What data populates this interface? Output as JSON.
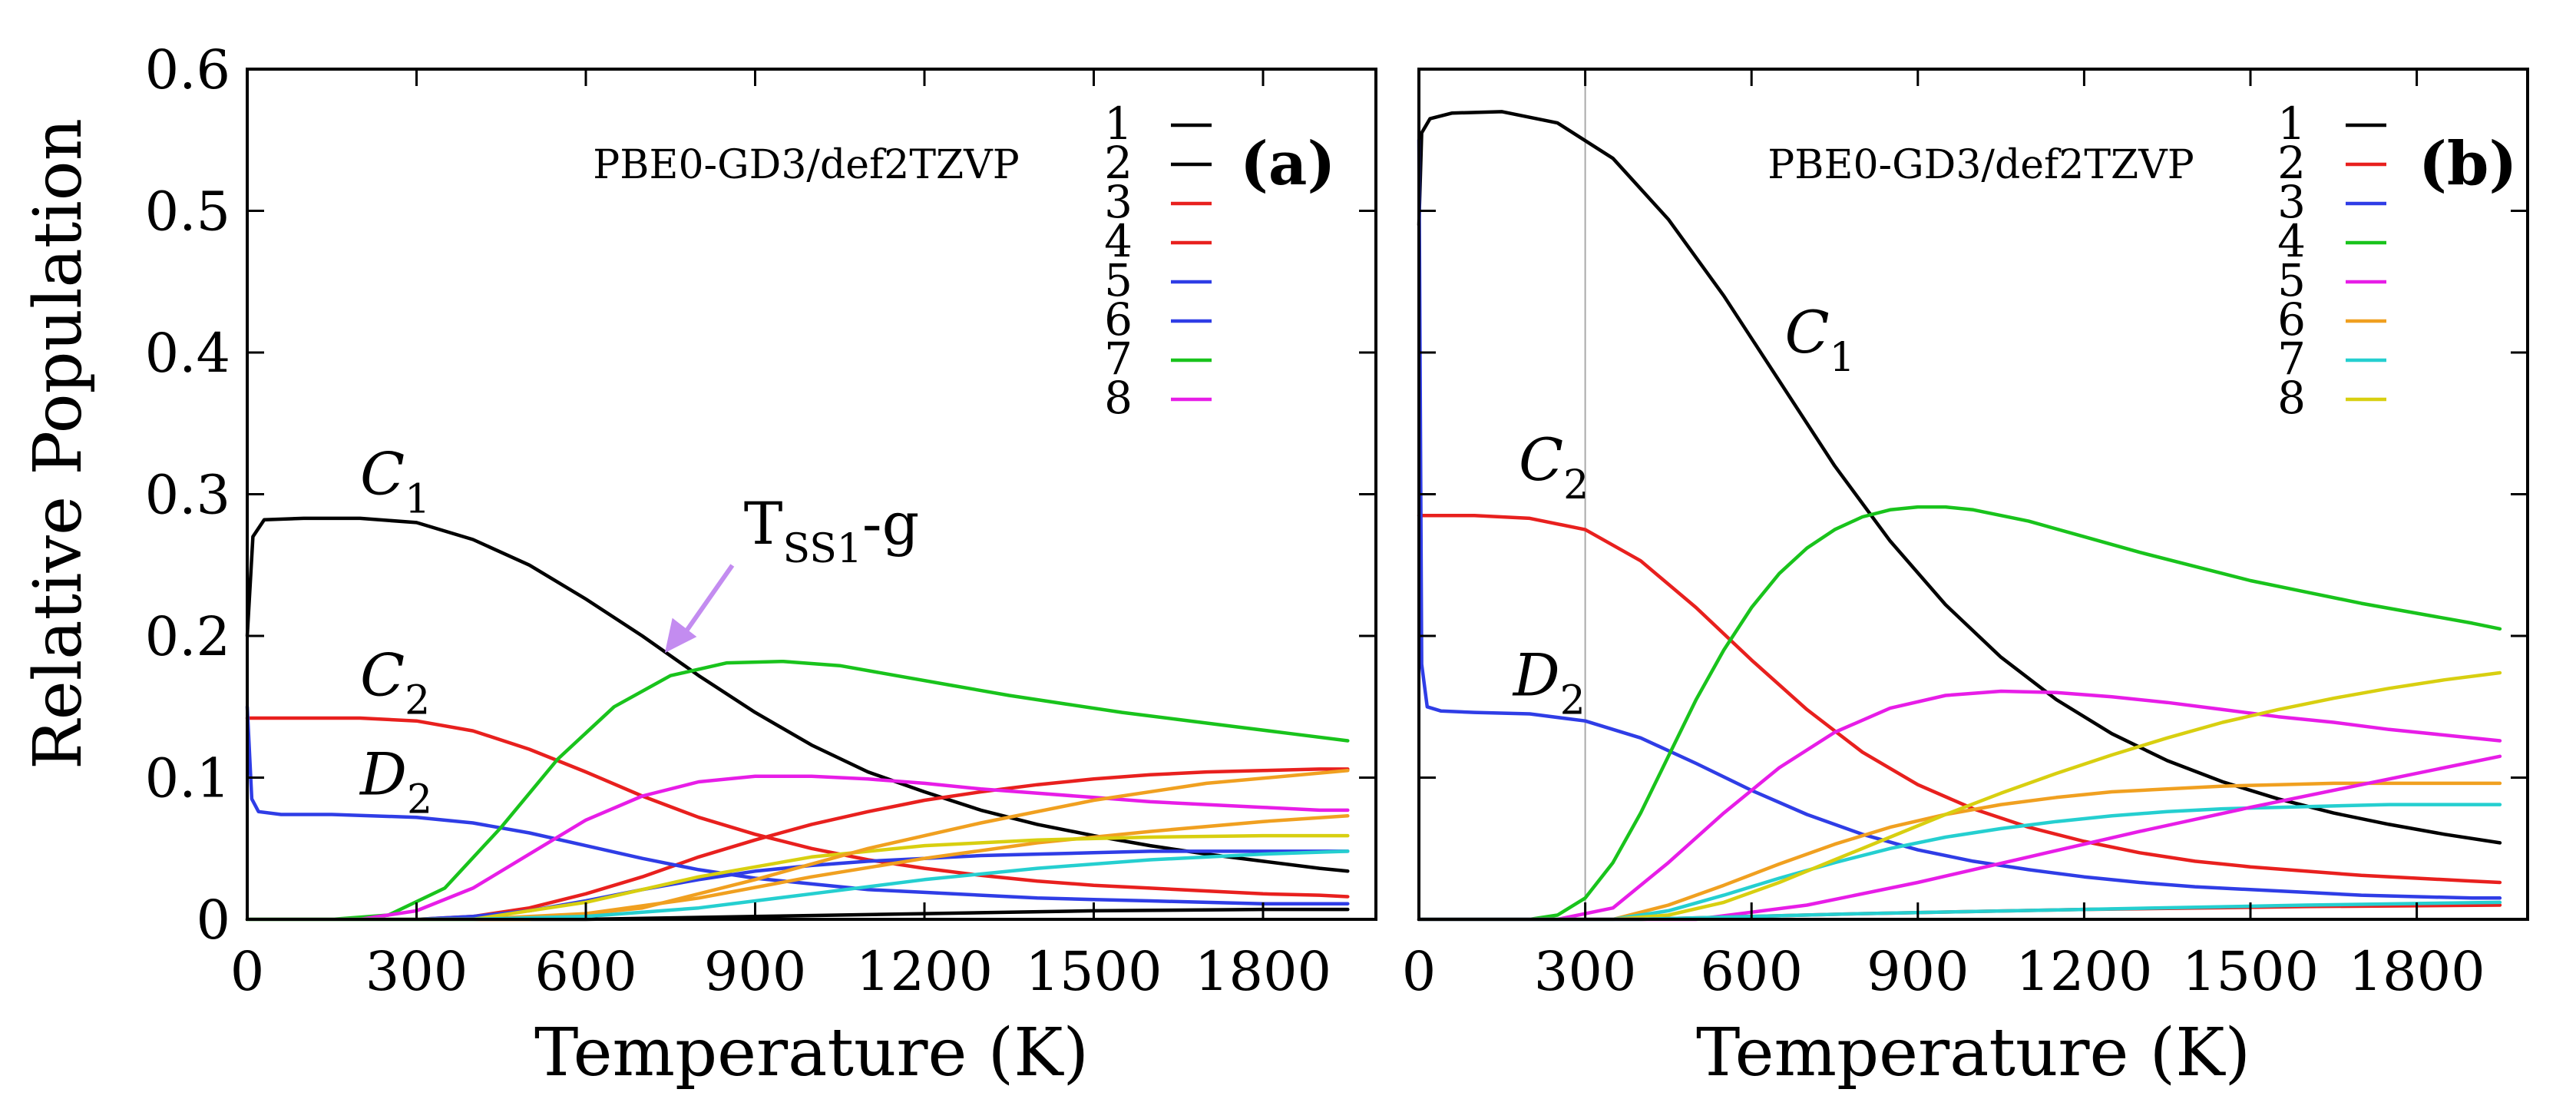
{
  "y_axis_label": "Relative Population",
  "chart_data": [
    {
      "type": "line",
      "panel_label": "(a)",
      "method": "PBE0-GD3/def2TZVP",
      "xlabel": "Temperature (K)",
      "ylabel": "Relative Population",
      "xlim": [
        0,
        2000
      ],
      "ylim": [
        0,
        0.6
      ],
      "xticks": [
        0,
        300,
        600,
        900,
        1200,
        1500,
        1800
      ],
      "yticks": [
        0,
        0.1,
        0.2,
        0.3,
        0.4,
        0.5,
        0.6
      ],
      "ytick_labels": [
        "0",
        "0.1",
        "0.2",
        "0.3",
        "0.4",
        "0.5",
        "0.6"
      ],
      "legend": [
        "1",
        "2",
        "3",
        "4",
        "5",
        "6",
        "7",
        "8"
      ],
      "series": [
        {
          "name": "1",
          "color": "#000000",
          "x": [
            0,
            300,
            600,
            900,
            1200,
            1500,
            1800,
            1950
          ],
          "y": [
            0,
            0,
            0,
            0.002,
            0.004,
            0.006,
            0.007,
            0.007
          ]
        },
        {
          "name": "2",
          "color": "#000000",
          "x": [
            0,
            10,
            30,
            100,
            200,
            300,
            400,
            500,
            600,
            700,
            800,
            900,
            1000,
            1100,
            1200,
            1300,
            1400,
            1500,
            1600,
            1700,
            1800,
            1900,
            1950
          ],
          "y": [
            0.2,
            0.27,
            0.282,
            0.283,
            0.283,
            0.28,
            0.268,
            0.25,
            0.226,
            0.2,
            0.172,
            0.146,
            0.123,
            0.104,
            0.09,
            0.077,
            0.067,
            0.059,
            0.052,
            0.046,
            0.041,
            0.036,
            0.034
          ]
        },
        {
          "name": "3",
          "color": "#e8201e",
          "x": [
            0,
            50,
            100,
            200,
            300,
            400,
            500,
            600,
            700,
            800,
            900,
            1000,
            1100,
            1200,
            1300,
            1400,
            1500,
            1600,
            1700,
            1800,
            1900,
            1950
          ],
          "y": [
            0.142,
            0.142,
            0.142,
            0.142,
            0.14,
            0.133,
            0.12,
            0.104,
            0.087,
            0.072,
            0.06,
            0.05,
            0.042,
            0.036,
            0.031,
            0.027,
            0.024,
            0.022,
            0.02,
            0.018,
            0.017,
            0.016
          ]
        },
        {
          "name": "4",
          "color": "#e8201e",
          "x": [
            0,
            300,
            400,
            500,
            600,
            700,
            800,
            900,
            1000,
            1100,
            1200,
            1300,
            1400,
            1500,
            1600,
            1700,
            1800,
            1900,
            1950
          ],
          "y": [
            0,
            0,
            0.002,
            0.008,
            0.018,
            0.03,
            0.044,
            0.056,
            0.067,
            0.076,
            0.084,
            0.09,
            0.095,
            0.099,
            0.102,
            0.104,
            0.105,
            0.106,
            0.106
          ]
        },
        {
          "name": "5",
          "color": "#2f3de6",
          "x": [
            0,
            8,
            20,
            60,
            150,
            300,
            400,
            500,
            600,
            700,
            800,
            900,
            1000,
            1100,
            1200,
            1300,
            1400,
            1500,
            1600,
            1700,
            1800,
            1900,
            1950
          ],
          "y": [
            0.15,
            0.085,
            0.076,
            0.074,
            0.074,
            0.072,
            0.068,
            0.061,
            0.052,
            0.043,
            0.035,
            0.029,
            0.025,
            0.021,
            0.019,
            0.017,
            0.015,
            0.014,
            0.013,
            0.012,
            0.011,
            0.011,
            0.011
          ]
        },
        {
          "name": "6",
          "color": "#2f3de6",
          "x": [
            0,
            300,
            400,
            500,
            600,
            700,
            800,
            900,
            1000,
            1100,
            1200,
            1300,
            1400,
            1500,
            1600,
            1700,
            1800,
            1900,
            1950
          ],
          "y": [
            0,
            0,
            0.002,
            0.006,
            0.013,
            0.021,
            0.028,
            0.034,
            0.038,
            0.041,
            0.043,
            0.045,
            0.046,
            0.047,
            0.048,
            0.048,
            0.048,
            0.048,
            0.048
          ]
        },
        {
          "name": "7",
          "color": "#19c31c",
          "x": [
            0,
            150,
            250,
            350,
            450,
            550,
            650,
            750,
            850,
            950,
            1050,
            1150,
            1250,
            1350,
            1450,
            1550,
            1650,
            1750,
            1850,
            1950
          ],
          "y": [
            0,
            0,
            0.003,
            0.022,
            0.065,
            0.113,
            0.15,
            0.172,
            0.181,
            0.182,
            0.179,
            0.172,
            0.165,
            0.158,
            0.152,
            0.146,
            0.141,
            0.136,
            0.131,
            0.126
          ]
        },
        {
          "name": "8",
          "color": "#e71de7",
          "x": [
            0,
            200,
            300,
            400,
            500,
            600,
            700,
            800,
            900,
            1000,
            1100,
            1200,
            1300,
            1400,
            1500,
            1600,
            1700,
            1800,
            1900,
            1950
          ],
          "y": [
            0,
            0,
            0.006,
            0.022,
            0.046,
            0.07,
            0.087,
            0.097,
            0.101,
            0.101,
            0.099,
            0.096,
            0.092,
            0.089,
            0.086,
            0.083,
            0.081,
            0.079,
            0.077,
            0.077
          ]
        },
        {
          "name": "",
          "color": "#f0a020",
          "x": [
            0,
            400,
            600,
            800,
            1000,
            1200,
            1400,
            1600,
            1800,
            1950
          ],
          "y": [
            0,
            0,
            0.004,
            0.015,
            0.03,
            0.043,
            0.054,
            0.062,
            0.069,
            0.073
          ]
        },
        {
          "name": "",
          "color": "#d8cf10",
          "x": [
            0,
            400,
            600,
            800,
            1000,
            1200,
            1400,
            1600,
            1800,
            1950
          ],
          "y": [
            0,
            0,
            0.012,
            0.03,
            0.044,
            0.052,
            0.056,
            0.058,
            0.059,
            0.059
          ]
        },
        {
          "name": "",
          "color": "#f0a020",
          "x": [
            0,
            500,
            700,
            900,
            1100,
            1300,
            1500,
            1700,
            1950
          ],
          "y": [
            0,
            0,
            0.008,
            0.028,
            0.05,
            0.068,
            0.084,
            0.096,
            0.105
          ]
        },
        {
          "name": "",
          "color": "#25cfd0",
          "x": [
            0,
            400,
            600,
            800,
            1000,
            1200,
            1400,
            1600,
            1800,
            1950
          ],
          "y": [
            0,
            0,
            0.002,
            0.008,
            0.018,
            0.028,
            0.036,
            0.042,
            0.046,
            0.048
          ]
        }
      ],
      "annotations": [
        {
          "text": "C",
          "sub": "1",
          "x": 200,
          "y": 0.3
        },
        {
          "text": "C",
          "sub": "2",
          "x": 200,
          "y": 0.158
        },
        {
          "text": "D",
          "sub": "2",
          "x": 200,
          "y": 0.088
        },
        {
          "text": "T",
          "sub": "SS1",
          "suffix": "-g",
          "x": 880,
          "y": 0.265,
          "arrow_to_x": 740,
          "arrow_to_y": 0.188
        }
      ]
    },
    {
      "type": "line",
      "panel_label": "(b)",
      "method": "PBE0-GD3/def2TZVP",
      "xlabel": "Temperature (K)",
      "ylabel": "Relative Population",
      "xlim": [
        0,
        2000
      ],
      "ylim": [
        0,
        0.6
      ],
      "xticks": [
        0,
        300,
        600,
        900,
        1200,
        1500,
        1800
      ],
      "yticks": [
        0,
        0.1,
        0.2,
        0.3,
        0.4,
        0.5,
        0.6
      ],
      "legend": [
        "1",
        "2",
        "3",
        "4",
        "5",
        "6",
        "7",
        "8"
      ],
      "vline_x": 300,
      "series": [
        {
          "name": "1",
          "color": "#000000",
          "x": [
            0,
            5,
            20,
            60,
            150,
            250,
            350,
            450,
            550,
            650,
            750,
            850,
            950,
            1050,
            1150,
            1250,
            1350,
            1450,
            1550,
            1650,
            1750,
            1850,
            1950
          ],
          "y": [
            0.49,
            0.555,
            0.565,
            0.569,
            0.57,
            0.562,
            0.537,
            0.494,
            0.44,
            0.38,
            0.32,
            0.267,
            0.222,
            0.185,
            0.155,
            0.131,
            0.112,
            0.097,
            0.085,
            0.075,
            0.067,
            0.06,
            0.054
          ]
        },
        {
          "name": "2",
          "color": "#e8201e",
          "x": [
            0,
            50,
            100,
            200,
            300,
            400,
            500,
            600,
            700,
            800,
            900,
            1000,
            1100,
            1200,
            1300,
            1400,
            1500,
            1600,
            1700,
            1800,
            1900,
            1950
          ],
          "y": [
            0.285,
            0.285,
            0.285,
            0.283,
            0.275,
            0.253,
            0.22,
            0.183,
            0.148,
            0.118,
            0.095,
            0.078,
            0.065,
            0.055,
            0.047,
            0.041,
            0.037,
            0.034,
            0.031,
            0.029,
            0.027,
            0.026
          ]
        },
        {
          "name": "3",
          "color": "#2f3de6",
          "x": [
            0,
            5,
            15,
            40,
            100,
            200,
            300,
            400,
            500,
            600,
            700,
            800,
            900,
            1000,
            1100,
            1200,
            1300,
            1400,
            1500,
            1600,
            1700,
            1800,
            1900,
            1950
          ],
          "y": [
            0.55,
            0.18,
            0.15,
            0.147,
            0.146,
            0.145,
            0.14,
            0.128,
            0.11,
            0.091,
            0.074,
            0.06,
            0.049,
            0.041,
            0.035,
            0.03,
            0.026,
            0.023,
            0.021,
            0.019,
            0.017,
            0.016,
            0.015,
            0.015
          ]
        },
        {
          "name": "4",
          "color": "#19c31c",
          "x": [
            0,
            200,
            250,
            300,
            350,
            400,
            450,
            500,
            550,
            600,
            650,
            700,
            750,
            800,
            850,
            900,
            950,
            1000,
            1100,
            1200,
            1300,
            1400,
            1500,
            1600,
            1700,
            1800,
            1900,
            1950
          ],
          "y": [
            0,
            0,
            0.003,
            0.015,
            0.04,
            0.075,
            0.115,
            0.155,
            0.19,
            0.22,
            0.244,
            0.262,
            0.275,
            0.284,
            0.289,
            0.291,
            0.291,
            0.289,
            0.281,
            0.27,
            0.259,
            0.249,
            0.239,
            0.231,
            0.223,
            0.216,
            0.209,
            0.205
          ]
        },
        {
          "name": "5",
          "color": "#e71de7",
          "x": [
            0,
            250,
            350,
            450,
            550,
            650,
            750,
            850,
            950,
            1050,
            1150,
            1250,
            1350,
            1450,
            1550,
            1650,
            1750,
            1850,
            1950
          ],
          "y": [
            0,
            0,
            0.008,
            0.04,
            0.075,
            0.107,
            0.132,
            0.149,
            0.158,
            0.161,
            0.16,
            0.157,
            0.153,
            0.148,
            0.143,
            0.139,
            0.134,
            0.13,
            0.126
          ]
        },
        {
          "name": "6",
          "color": "#f0a020",
          "x": [
            0,
            350,
            450,
            550,
            650,
            750,
            850,
            950,
            1050,
            1150,
            1250,
            1350,
            1450,
            1550,
            1650,
            1750,
            1850,
            1950
          ],
          "y": [
            0,
            0,
            0.01,
            0.024,
            0.039,
            0.053,
            0.065,
            0.074,
            0.081,
            0.086,
            0.09,
            0.092,
            0.094,
            0.095,
            0.096,
            0.096,
            0.096,
            0.096
          ]
        },
        {
          "name": "7",
          "color": "#25cfd0",
          "x": [
            0,
            350,
            450,
            550,
            650,
            750,
            850,
            950,
            1050,
            1150,
            1250,
            1350,
            1450,
            1550,
            1650,
            1750,
            1850,
            1950
          ],
          "y": [
            0,
            0,
            0.006,
            0.017,
            0.029,
            0.04,
            0.05,
            0.058,
            0.064,
            0.069,
            0.073,
            0.076,
            0.078,
            0.079,
            0.08,
            0.081,
            0.081,
            0.081
          ]
        },
        {
          "name": "8",
          "color": "#d8cf10",
          "x": [
            0,
            350,
            450,
            550,
            650,
            750,
            850,
            950,
            1050,
            1150,
            1250,
            1350,
            1450,
            1550,
            1650,
            1750,
            1850,
            1950
          ],
          "y": [
            0,
            0,
            0.003,
            0.012,
            0.026,
            0.042,
            0.058,
            0.074,
            0.089,
            0.103,
            0.116,
            0.128,
            0.139,
            0.148,
            0.156,
            0.163,
            0.169,
            0.174
          ]
        },
        {
          "name": "",
          "color": "#e71de7",
          "x": [
            0,
            500,
            700,
            900,
            1100,
            1300,
            1500,
            1700,
            1950
          ],
          "y": [
            0,
            0,
            0.01,
            0.026,
            0.044,
            0.062,
            0.079,
            0.095,
            0.115
          ]
        },
        {
          "name": "",
          "color": "#e8201e",
          "x": [
            0,
            400,
            800,
            1200,
            1600,
            1950
          ],
          "y": [
            0,
            0,
            0.004,
            0.007,
            0.009,
            0.01
          ]
        },
        {
          "name": "",
          "color": "#25cfd0",
          "x": [
            0,
            400,
            800,
            1200,
            1600,
            1950
          ],
          "y": [
            0,
            0,
            0.004,
            0.007,
            0.01,
            0.012
          ]
        }
      ],
      "annotations": [
        {
          "text": "C",
          "sub": "1",
          "x": 660,
          "y": 0.4
        },
        {
          "text": "C",
          "sub": "2",
          "x": 180,
          "y": 0.31
        },
        {
          "text": "D",
          "sub": "2",
          "x": 170,
          "y": 0.158
        }
      ]
    }
  ]
}
